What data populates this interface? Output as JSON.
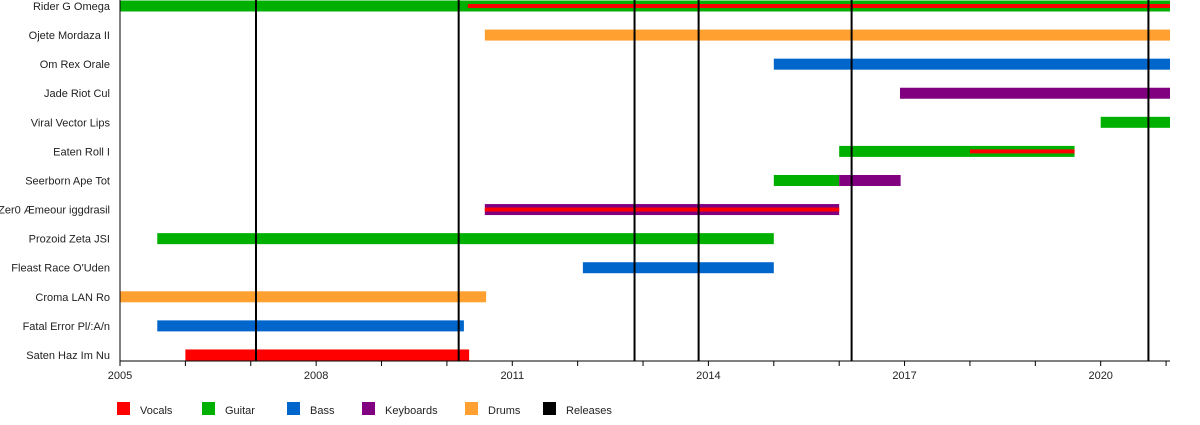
{
  "chart_data": {
    "type": "timeline",
    "xlim": [
      2005,
      2021.06
    ],
    "x_ticks_major": [
      2005,
      2008,
      2011,
      2014,
      2017,
      2020
    ],
    "x_tick_minor_step": 1,
    "grid": false,
    "legend_placement": "bottom-left",
    "colors": {
      "Vocals": "#ff0000",
      "Guitar": "#00b000",
      "Bass": "#0066cc",
      "Keyboards": "#800080",
      "Drums": "#ffa030",
      "Releases": "#000000"
    },
    "legend": [
      "Vocals",
      "Guitar",
      "Bass",
      "Keyboards",
      "Drums",
      "Releases"
    ],
    "members": [
      {
        "name": "Rider G Omega",
        "roles": [
          {
            "role": "Guitar",
            "start": 2005.0,
            "end": 2021.06
          },
          {
            "role": "Vocals",
            "start": 2010.32,
            "end": 2021.06,
            "thin": true
          }
        ]
      },
      {
        "name": "Ojete Mordaza II",
        "roles": [
          {
            "role": "Drums",
            "start": 2010.58,
            "end": 2021.06
          }
        ]
      },
      {
        "name": "Om Rex Orale",
        "roles": [
          {
            "role": "Bass",
            "start": 2015.0,
            "end": 2021.06
          }
        ]
      },
      {
        "name": "Jade Riot Cul",
        "roles": [
          {
            "role": "Keyboards",
            "start": 2016.93,
            "end": 2021.06
          }
        ]
      },
      {
        "name": "Viral Vector Lips",
        "roles": [
          {
            "role": "Guitar",
            "start": 2020.0,
            "end": 2021.06
          }
        ]
      },
      {
        "name": "Eaten Roll I",
        "roles": [
          {
            "role": "Guitar",
            "start": 2016.0,
            "end": 2019.6
          },
          {
            "role": "Vocals",
            "start": 2018.0,
            "end": 2019.6,
            "thin": true
          }
        ]
      },
      {
        "name": "Seerborn Ape Tot",
        "roles": [
          {
            "role": "Guitar",
            "start": 2015.0,
            "end": 2016.0
          },
          {
            "role": "Keyboards",
            "start": 2016.0,
            "end": 2016.94
          }
        ]
      },
      {
        "name": "Zer0 Æmeour iggdrasil",
        "roles": [
          {
            "role": "Keyboards",
            "start": 2010.58,
            "end": 2016.0
          },
          {
            "role": "Vocals",
            "start": 2010.58,
            "end": 2016.0,
            "thin": true
          }
        ]
      },
      {
        "name": "Prozoid Zeta JSI",
        "roles": [
          {
            "role": "Guitar",
            "start": 2005.57,
            "end": 2015.0
          }
        ]
      },
      {
        "name": "Fleast Race O'Uden",
        "roles": [
          {
            "role": "Bass",
            "start": 2012.08,
            "end": 2015.0
          }
        ]
      },
      {
        "name": "Croma LAN Ro",
        "roles": [
          {
            "role": "Drums",
            "start": 2005.0,
            "end": 2010.6
          }
        ]
      },
      {
        "name": "Fatal Error Pl/:A/n",
        "roles": [
          {
            "role": "Bass",
            "start": 2005.57,
            "end": 2010.26
          }
        ]
      },
      {
        "name": "Saten Haz Im Nu",
        "roles": [
          {
            "role": "Vocals",
            "start": 2006.0,
            "end": 2010.34
          }
        ]
      }
    ],
    "releases": [
      2007.08,
      2010.18,
      2012.87,
      2013.85,
      2016.19,
      2020.73
    ]
  }
}
